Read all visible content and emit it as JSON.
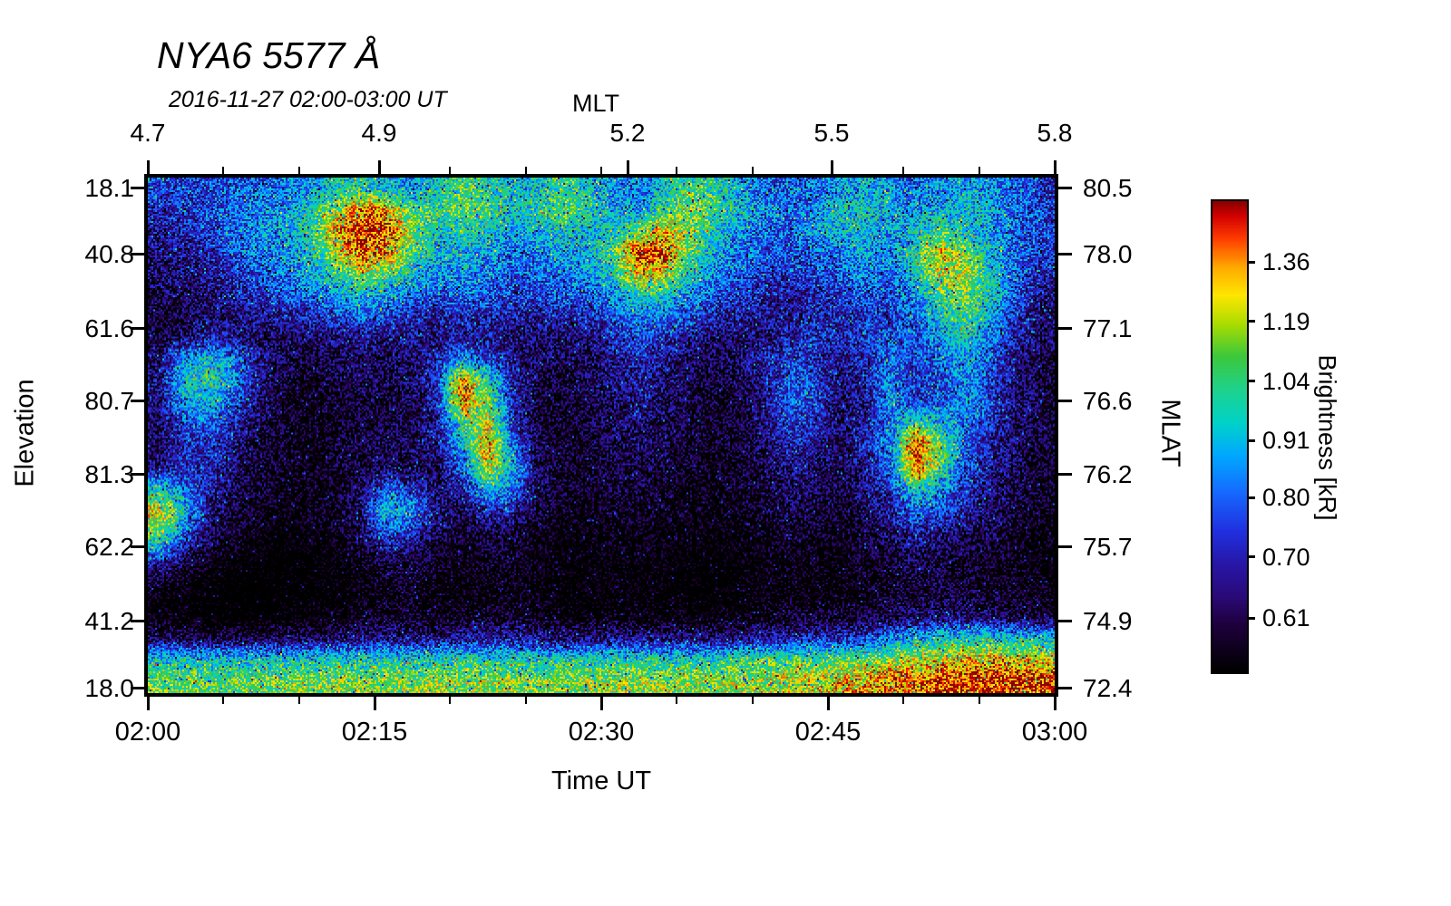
{
  "colors": {
    "background": "#ffffff",
    "frame": "#000000"
  },
  "chart_data": {
    "type": "heatmap",
    "title": "NYA6 5577 Å",
    "subtitle": "2016-11-27 02:00-03:00 UT",
    "axes": {
      "top": {
        "label": "MLT",
        "ticks": [
          {
            "label": "4.7",
            "f": 0.0
          },
          {
            "label": "4.9",
            "f": 0.255
          },
          {
            "label": "5.2",
            "f": 0.529
          },
          {
            "label": "5.5",
            "f": 0.754
          },
          {
            "label": "5.8",
            "f": 1.0
          }
        ]
      },
      "bottom": {
        "label": "Time UT",
        "ticks": [
          {
            "label": "02:00",
            "f": 0.0
          },
          {
            "label": "02:15",
            "f": 0.25
          },
          {
            "label": "02:30",
            "f": 0.5
          },
          {
            "label": "02:45",
            "f": 0.75
          },
          {
            "label": "03:00",
            "f": 1.0
          }
        ]
      },
      "left": {
        "label": "Elevation",
        "ticks": [
          {
            "label": "18.1",
            "f": 0.021
          },
          {
            "label": "40.8",
            "f": 0.149
          },
          {
            "label": "61.6",
            "f": 0.293
          },
          {
            "label": "80.7",
            "f": 0.434
          },
          {
            "label": "81.3",
            "f": 0.576
          },
          {
            "label": "62.2",
            "f": 0.717
          },
          {
            "label": "41.2",
            "f": 0.861
          },
          {
            "label": "18.0",
            "f": 0.991
          }
        ]
      },
      "right": {
        "label": "MLAT",
        "ticks": [
          {
            "label": "80.5",
            "f": 0.021
          },
          {
            "label": "78.0",
            "f": 0.149
          },
          {
            "label": "77.1",
            "f": 0.293
          },
          {
            "label": "76.6",
            "f": 0.434
          },
          {
            "label": "76.2",
            "f": 0.576
          },
          {
            "label": "75.7",
            "f": 0.717
          },
          {
            "label": "74.9",
            "f": 0.861
          },
          {
            "label": "72.4",
            "f": 0.991
          }
        ]
      }
    },
    "colorbar": {
      "label": "Brightness [kR]",
      "scale": "log",
      "vmin": 0.54,
      "vmax": 1.56,
      "ticks": [
        {
          "label": "1.36",
          "value": 1.36
        },
        {
          "label": "1.19",
          "value": 1.19
        },
        {
          "label": "1.04",
          "value": 1.04
        },
        {
          "label": "0.91",
          "value": 0.91
        },
        {
          "label": "0.80",
          "value": 0.8
        },
        {
          "label": "0.70",
          "value": 0.7
        },
        {
          "label": "0.61",
          "value": 0.61
        }
      ],
      "stops": [
        [
          0.0,
          "#000000"
        ],
        [
          0.1,
          "#1e003c"
        ],
        [
          0.16,
          "#2a0a78"
        ],
        [
          0.22,
          "#2814a0"
        ],
        [
          0.3,
          "#2030e0"
        ],
        [
          0.38,
          "#1668ff"
        ],
        [
          0.46,
          "#00a8ff"
        ],
        [
          0.53,
          "#00d2c8"
        ],
        [
          0.6,
          "#1ed28c"
        ],
        [
          0.67,
          "#3cc83c"
        ],
        [
          0.74,
          "#aadc00"
        ],
        [
          0.8,
          "#ffe600"
        ],
        [
          0.86,
          "#ffaa00"
        ],
        [
          0.92,
          "#ff3c00"
        ],
        [
          0.97,
          "#d20000"
        ],
        [
          1.0,
          "#8c0000"
        ]
      ]
    },
    "field": {
      "units": "kR",
      "cols": 36,
      "rows": 24,
      "x_range": [
        "02:00",
        "03:00"
      ],
      "values_x100": [
        "76 74 76 78 80 82 86 95 100 90 86 95 105 100 90 95 105 95 86 80 95 105 100 86 80 78 80 86 90 86 80 86 90 86 78 72",
        "70 72 76 80 86 86 95 115 140 130 105 100 110 105 95 100 110 100 90 86 100 110 105 95 86 80 86 95 95 90 86 90 95 90 80 74",
        "66 70 74 80 86 90 100 130 155 145 115 95 100 95 86 90 95 90 95 110 130 110 95 86 80 78 88 92 95 86 95 105 95 86 78 72",
        "64 66 70 76 82 86 95 120 145 135 105 90 92 88 82 84 88 92 105 150 145 105 90 82 78 76 78 82 88 84 100 130 110 90 80 72",
        "62 64 66 72 78 82 88 100 115 105 92 84 86 82 78 80 82 86 95 130 120 95 84 78 74 72 74 78 84 80 95 120 115 95 78 70",
        "60 62 64 68 72 76 80 86 92 86 80 76 80 78 74 74 76 80 86 100 95 84 78 72 70 68 70 72 76 76 85 105 110 95 76 66",
        "58 60 62 64 66 68 70 74 78 74 70 68 70 70 68 66 68 70 76 84 80 74 70 66 64 66 70 68 72 74 80 95 105 88 72 64",
        "60 64 70 66 62 60 62 64 66 64 64 66 68 66 64 62 62 64 70 76 72 66 62 62 66 70 74 70 74 78 76 85 95 80 68 62",
        "64 86 95 80 66 60 58 60 62 62 64 70 85 75 64 60 60 62 66 70 66 62 60 62 68 74 72 66 70 80 74 80 88 76 66 60",
        "66 95 100 82 64 58 56 58 60 60 62 72 140 100 68 60 58 60 64 68 64 60 58 60 66 78 74 64 68 84 72 76 84 72 64 58",
        "64 88 92 74 62 56 54 56 58 58 60 70 135 110 70 58 56 58 62 64 62 58 56 58 64 80 76 62 66 88 72 78 86 74 64 58",
        "62 76 80 68 60 56 54 56 58 58 60 66 100 120 72 58 56 58 62 64 60 58 56 58 64 76 70 62 68 80 110 95 80 70 62 58",
        "62 70 72 64 58 56 54 56 60 60 62 64 90 135 80 60 56 58 60 62 60 56 56 58 62 70 66 62 70 85 145 110 78 68 62 58",
        "64 72 70 62 58 54 54 56 58 60 60 62 78 120 90 62 56 56 58 60 58 56 54 56 60 66 64 60 66 78 140 100 76 66 62 56",
        "95 80 68 60 56 54 54 56 62 78 72 62 68 95 80 62 56 56 58 58 56 54 54 56 58 62 62 58 64 72 100 85 72 64 60 56",
        "125 90 66 58 54 52 54 56 64 95 85 64 60 70 68 58 54 54 56 56 54 54 52 54 56 60 58 56 62 68 80 75 68 62 58 54",
        "110 78 62 56 52 50 52 54 60 80 72 60 56 60 58 54 52 52 54 54 52 52 52 52 54 56 56 54 58 62 68 66 62 60 56 52",
        "80 64 56 52 50 48 50 52 56 62 60 56 54 56 56 52 50 52 52 52 52 50 50 52 52 54 54 52 56 58 62 60 58 56 54 52",
        "60 54 50 48 48 48 48 50 52 56 56 54 52 54 54 52 50 50 52 50 50 50 48 50 52 52 52 52 54 56 58 58 56 54 54 52",
        "52 50 48 46 46 48 48 50 52 54 54 52 52 52 54 52 50 50 50 50 50 48 48 50 52 52 52 52 54 56 58 58 58 56 56 54",
        "52 50 48 48 48 50 50 52 54 56 56 54 54 56 56 54 52 52 54 52 52 52 52 52 54 56 56 56 58 60 62 64 62 62 60 58",
        "62 60 60 60 60 62 62 64 66 66 66 66 66 68 68 66 64 64 66 66 64 64 64 66 68 70 72 72 74 85 90 95 98 98 95 92",
        "95 96 95 94 96 97 97 98 98 98 98 100 100 100 100 98 98 100 100 100 98 98 100 102 104 106 106 110 112 116 122 126 128 130 128 124",
        "108 110 108 108 110 112 112 112 112 112 114 114 114 115 114 112 112 114 114 115 114 114 115 116 118 122 124 128 132 138 142 146 148 150 150 146"
      ]
    },
    "noise": {
      "sigma_ln": 0.19,
      "seed": 987654321
    }
  }
}
